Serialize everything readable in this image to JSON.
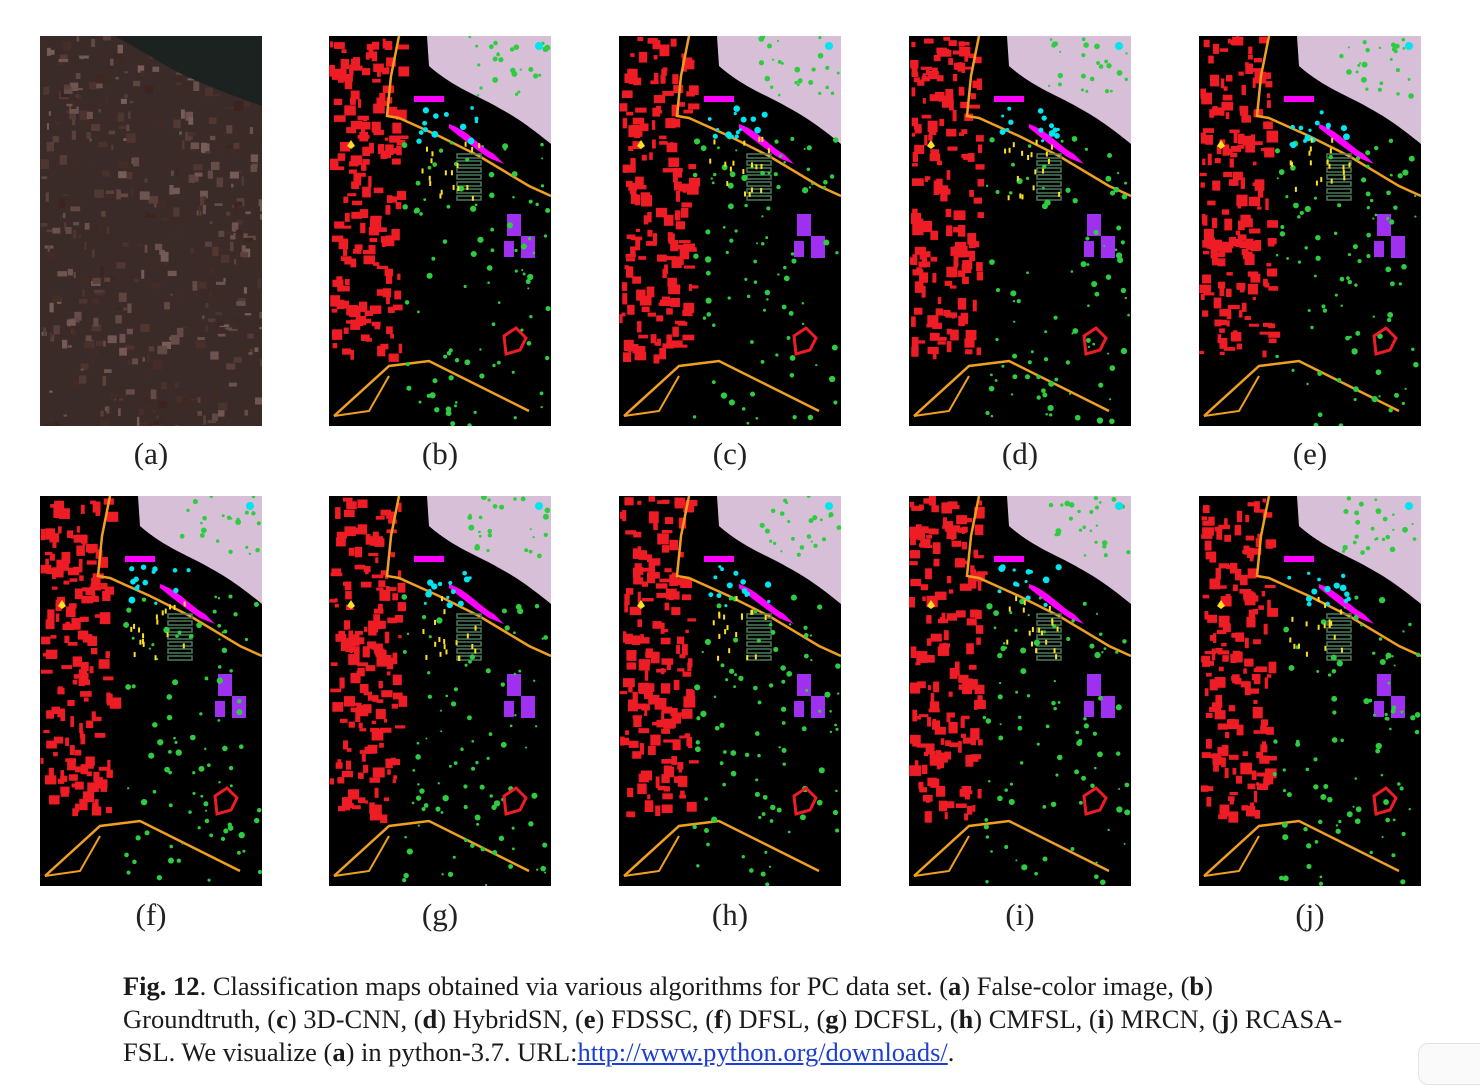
{
  "panels": [
    {
      "label": "(a)",
      "kind": "false-color"
    },
    {
      "label": "(b)",
      "kind": "map"
    },
    {
      "label": "(c)",
      "kind": "map"
    },
    {
      "label": "(d)",
      "kind": "map"
    },
    {
      "label": "(e)",
      "kind": "map"
    },
    {
      "label": "(f)",
      "kind": "map"
    },
    {
      "label": "(g)",
      "kind": "map"
    },
    {
      "label": "(h)",
      "kind": "map"
    },
    {
      "label": "(i)",
      "kind": "map"
    },
    {
      "label": "(j)",
      "kind": "map"
    }
  ],
  "caption": {
    "fig_label": "Fig. 12",
    "lead": ".  Classification maps obtained via various algorithms for PC data set. (",
    "items": [
      {
        "key": "a",
        "text": ") False-color image, ("
      },
      {
        "key": "b",
        "text": ") Groundtruth, ("
      },
      {
        "key": "c",
        "text": ") 3D-CNN, ("
      },
      {
        "key": "d",
        "text": ") HybridSN, ("
      },
      {
        "key": "e",
        "text": ") FDSSC, ("
      },
      {
        "key": "f",
        "text": ") DFSL, ("
      },
      {
        "key": "g",
        "text": ") DCFSL, ("
      },
      {
        "key": "h",
        "text": ") CMFSL, ("
      },
      {
        "key": "i",
        "text": ") MRCN, ("
      },
      {
        "key": "j",
        "text": ") RCASA-FSL. We visualize ("
      }
    ],
    "visualize_key": "a",
    "tail": ") in python-3.7. URL:",
    "url_text": "http://www.python.org/downloads/",
    "end": "."
  },
  "colors": {
    "meadows": "#2ecc40",
    "bricks": "#ee1c24",
    "water": "#d8bfd8",
    "trees": "#00e5ee",
    "asphalt": "#ff00ff",
    "bare_soil": "#a030f0",
    "shadows": "#f0a020",
    "tiles": "#4a7a5a",
    "self_blocking": "#ffe020",
    "link": "#1d3fd0"
  }
}
